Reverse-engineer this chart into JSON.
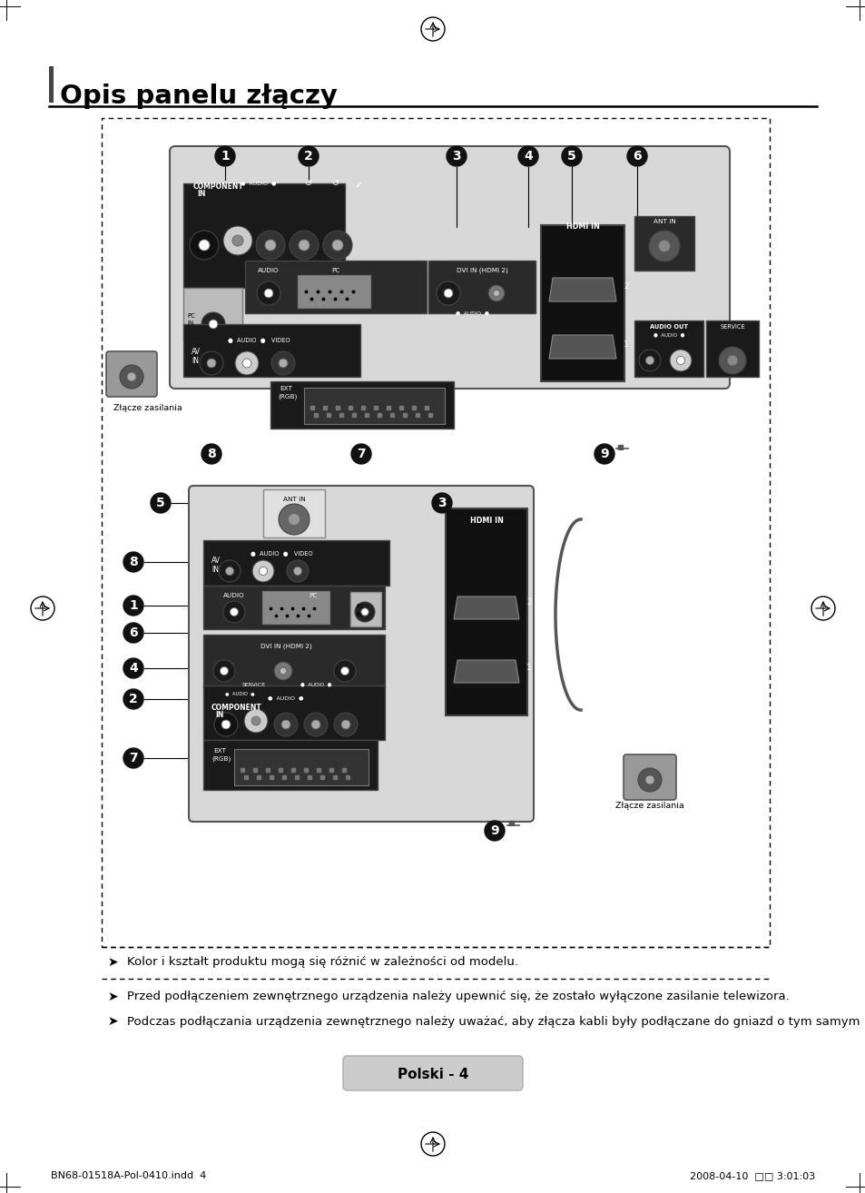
{
  "title": "Opis panelu złączy",
  "bg_color": "#ffffff",
  "page_label": "Polski - 4",
  "footer_left": "BN68-01518A-Pol-0410.indd  4",
  "footer_right": "2008-04-10  □□ 3:01:03",
  "note1": "Kolor i kształt produktu mogą się różnić w zależności od modelu.",
  "note2": "Przed podłączeniem zewnętrznego urządzenia należy upewnić się, że zostało wyłączone zasilanie telewizora.",
  "note3": "Podczas podłączania urządzenia zewnętrznego należy uważać, aby złącza kabli były podłączane do gniazd o tym samym kolorze."
}
